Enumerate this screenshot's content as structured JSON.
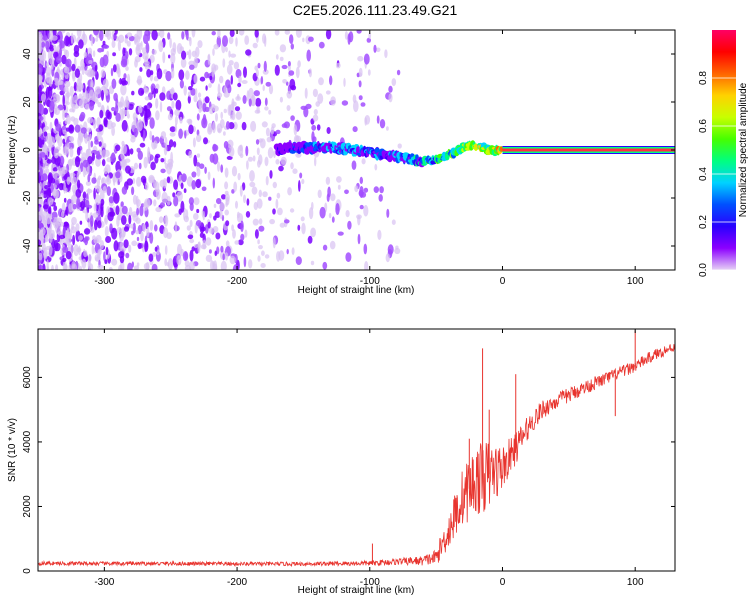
{
  "title": "C2E5.2026.111.23.49.G21",
  "chart_data": [
    {
      "type": "heatmap",
      "name": "spectrogram",
      "xlabel": "Height of straight line (km)",
      "ylabel": "Frequency (Hz)",
      "xlim": [
        -350,
        130
      ],
      "ylim": [
        -50,
        50
      ],
      "xticks": [
        -300,
        -200,
        -100,
        0,
        100
      ],
      "xtick_labels": [
        "-300",
        "-200",
        "-100",
        "0",
        "100"
      ],
      "yticks": [
        -40,
        -20,
        0,
        20,
        40
      ],
      "ytick_labels": [
        "-40",
        "-20",
        "0",
        "20",
        "40"
      ],
      "colorbar": {
        "label": "Normalized spectral amplitude",
        "range": [
          0,
          1
        ],
        "ticks": [
          0.0,
          0.2,
          0.4,
          0.6,
          0.8
        ],
        "tick_labels": [
          "0.0",
          "0.2",
          "0.4",
          "0.6",
          "0.8"
        ],
        "colormap": [
          "#e6d2f5",
          "#8c00ff",
          "#2a00ff",
          "#0050ff",
          "#00d2ff",
          "#00ff80",
          "#46ff00",
          "#c8ff00",
          "#ffd200",
          "#ff6400",
          "#ff0000",
          "#ff0064"
        ]
      },
      "ridge": {
        "x": [
          -170,
          -150,
          -130,
          -110,
          -90,
          -75,
          -60,
          -50,
          -40,
          -30,
          -20,
          -10,
          0,
          50,
          100,
          130
        ],
        "freq": [
          0,
          1,
          1,
          0,
          -2,
          -3,
          -5,
          -4,
          -2,
          1,
          2,
          0,
          0,
          0,
          0,
          0
        ],
        "amplitude": [
          0.2,
          0.3,
          0.4,
          0.4,
          0.35,
          0.4,
          0.5,
          0.55,
          0.6,
          0.7,
          0.75,
          0.7,
          0.9,
          0.95,
          0.95,
          0.95
        ]
      },
      "noise_extent_x": [
        -350,
        -75
      ]
    },
    {
      "type": "line",
      "name": "snr",
      "xlabel": "Height of straight line (km)",
      "ylabel": "SNR (10 * v/v)",
      "xlim": [
        -350,
        130
      ],
      "ylim": [
        0,
        7500
      ],
      "xticks": [
        -300,
        -200,
        -100,
        0,
        100
      ],
      "xtick_labels": [
        "-300",
        "-200",
        "-100",
        "0",
        "100"
      ],
      "yticks": [
        0,
        2000,
        4000,
        6000
      ],
      "ytick_labels": [
        "0",
        "2000",
        "4000",
        "6000"
      ],
      "line_color": "#e8342e",
      "series": [
        {
          "name": "SNR",
          "x": [
            -350,
            -300,
            -250,
            -200,
            -150,
            -100,
            -80,
            -60,
            -50,
            -40,
            -30,
            -20,
            -10,
            0,
            10,
            20,
            30,
            40,
            60,
            80,
            100,
            110,
            120,
            130
          ],
          "values": [
            240,
            230,
            230,
            220,
            220,
            240,
            290,
            320,
            420,
            1300,
            2300,
            2800,
            3000,
            3200,
            3800,
            4500,
            5000,
            5250,
            5650,
            6000,
            6350,
            6600,
            6800,
            6950
          ],
          "noise_band": [
            60,
            60,
            60,
            60,
            60,
            80,
            100,
            150,
            250,
            600,
            900,
            1100,
            1100,
            700,
            500,
            350,
            300,
            250,
            220,
            200,
            180,
            180,
            170,
            150
          ]
        }
      ],
      "spikes": [
        {
          "x": -98,
          "value": 850
        },
        {
          "x": -25,
          "value": 4100
        },
        {
          "x": -15,
          "value": 6900
        },
        {
          "x": -10,
          "value": 5000
        },
        {
          "x": 10,
          "value": 6100
        },
        {
          "x": 85,
          "value": 4800
        },
        {
          "x": 100,
          "value": 7450
        }
      ]
    }
  ]
}
